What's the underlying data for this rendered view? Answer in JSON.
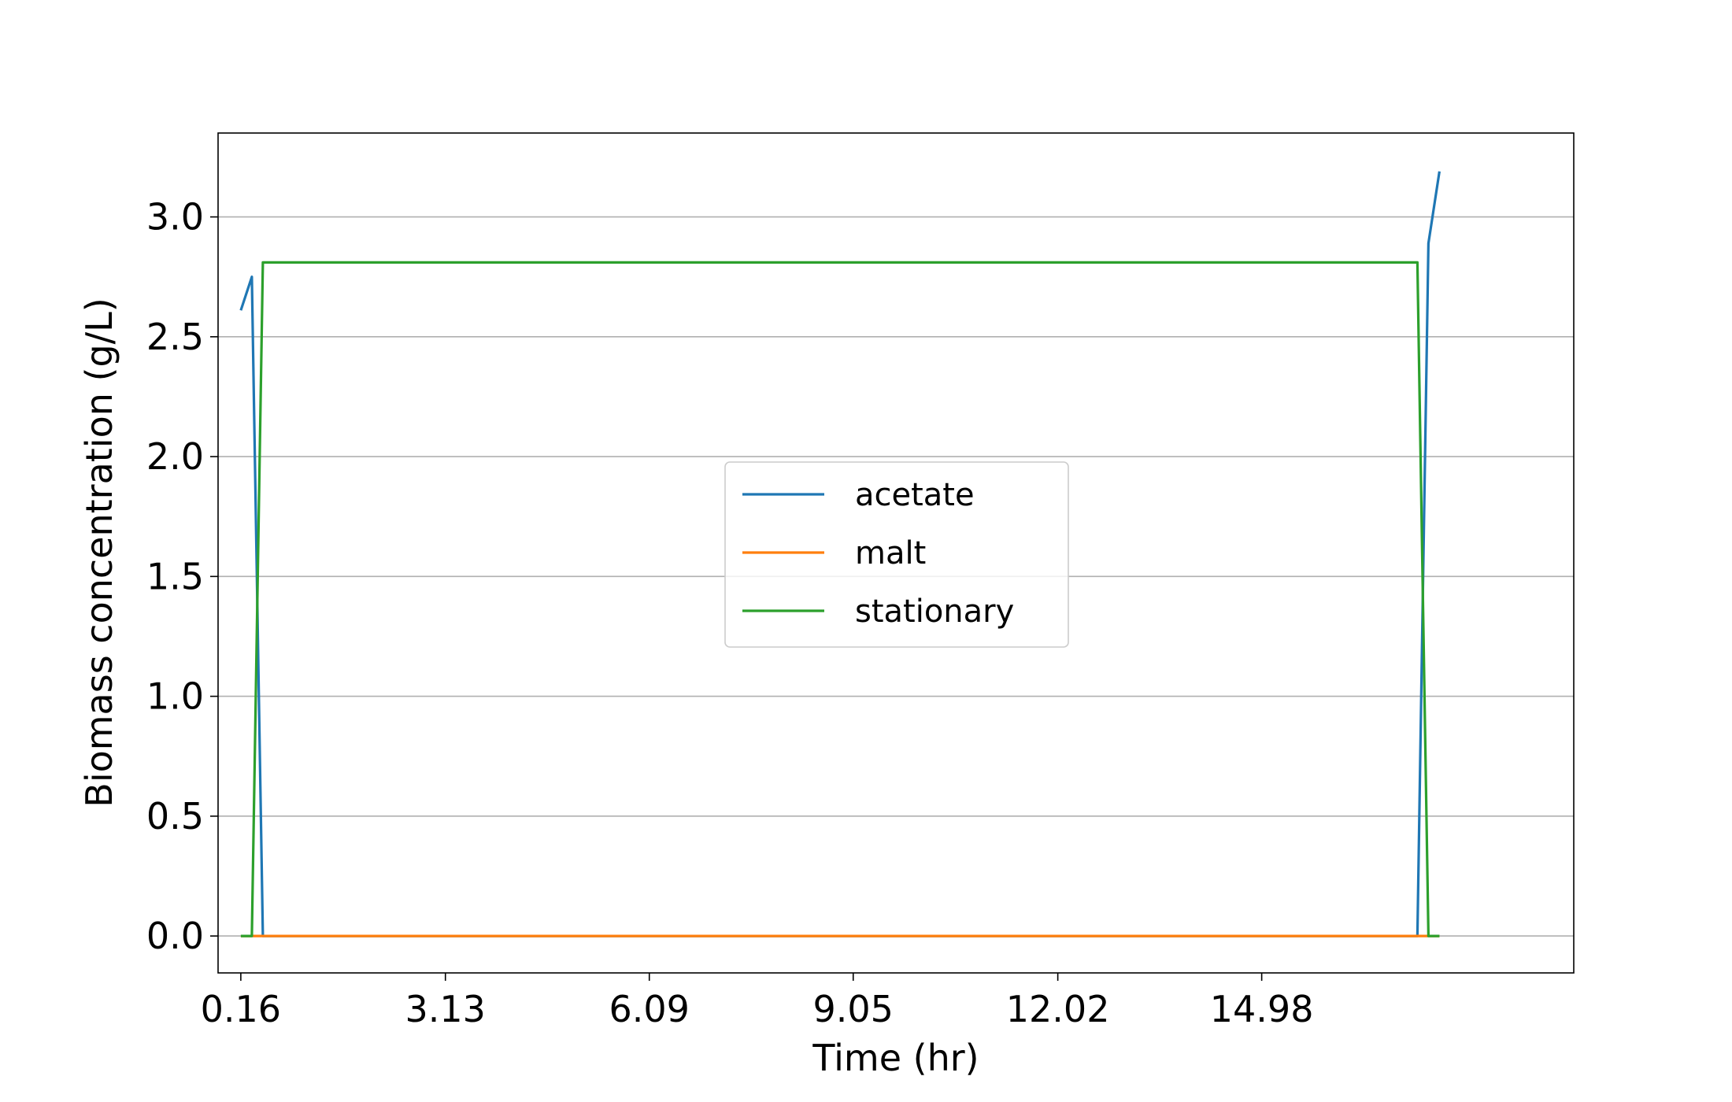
{
  "chart_data": {
    "type": "line",
    "title": "",
    "xlabel": "Time (hr)",
    "ylabel": "Biomass concentration (g/L)",
    "xlim": [
      -0.17,
      19.51
    ],
    "ylim": [
      -0.154,
      3.35
    ],
    "xticks": [
      0.16,
      3.13,
      6.09,
      9.05,
      12.02,
      14.98
    ],
    "xtick_labels": [
      "0.16",
      "3.13",
      "6.09",
      "9.05",
      "12.02",
      "14.98"
    ],
    "yticks": [
      0.0,
      0.5,
      1.0,
      1.5,
      2.0,
      2.5,
      3.0
    ],
    "ytick_labels": [
      "0.0",
      "0.5",
      "1.0",
      "1.5",
      "2.0",
      "2.5",
      "3.0"
    ],
    "grid": "y",
    "legend_position": "center",
    "series": [
      {
        "name": "acetate",
        "color": "#1f77b4",
        "x": [
          0.16,
          0.32,
          0.48,
          17.24,
          17.4,
          17.56
        ],
        "y": [
          2.61,
          2.75,
          0.0,
          0.0,
          2.89,
          3.19
        ]
      },
      {
        "name": "malt",
        "color": "#ff7f0e",
        "x": [
          0.16,
          17.56
        ],
        "y": [
          0.0,
          0.0
        ]
      },
      {
        "name": "stationary",
        "color": "#2ca02c",
        "x": [
          0.16,
          0.32,
          0.48,
          17.24,
          17.4,
          17.56
        ],
        "y": [
          0.0,
          0.0,
          2.81,
          2.81,
          0.0,
          0.0
        ]
      }
    ]
  }
}
